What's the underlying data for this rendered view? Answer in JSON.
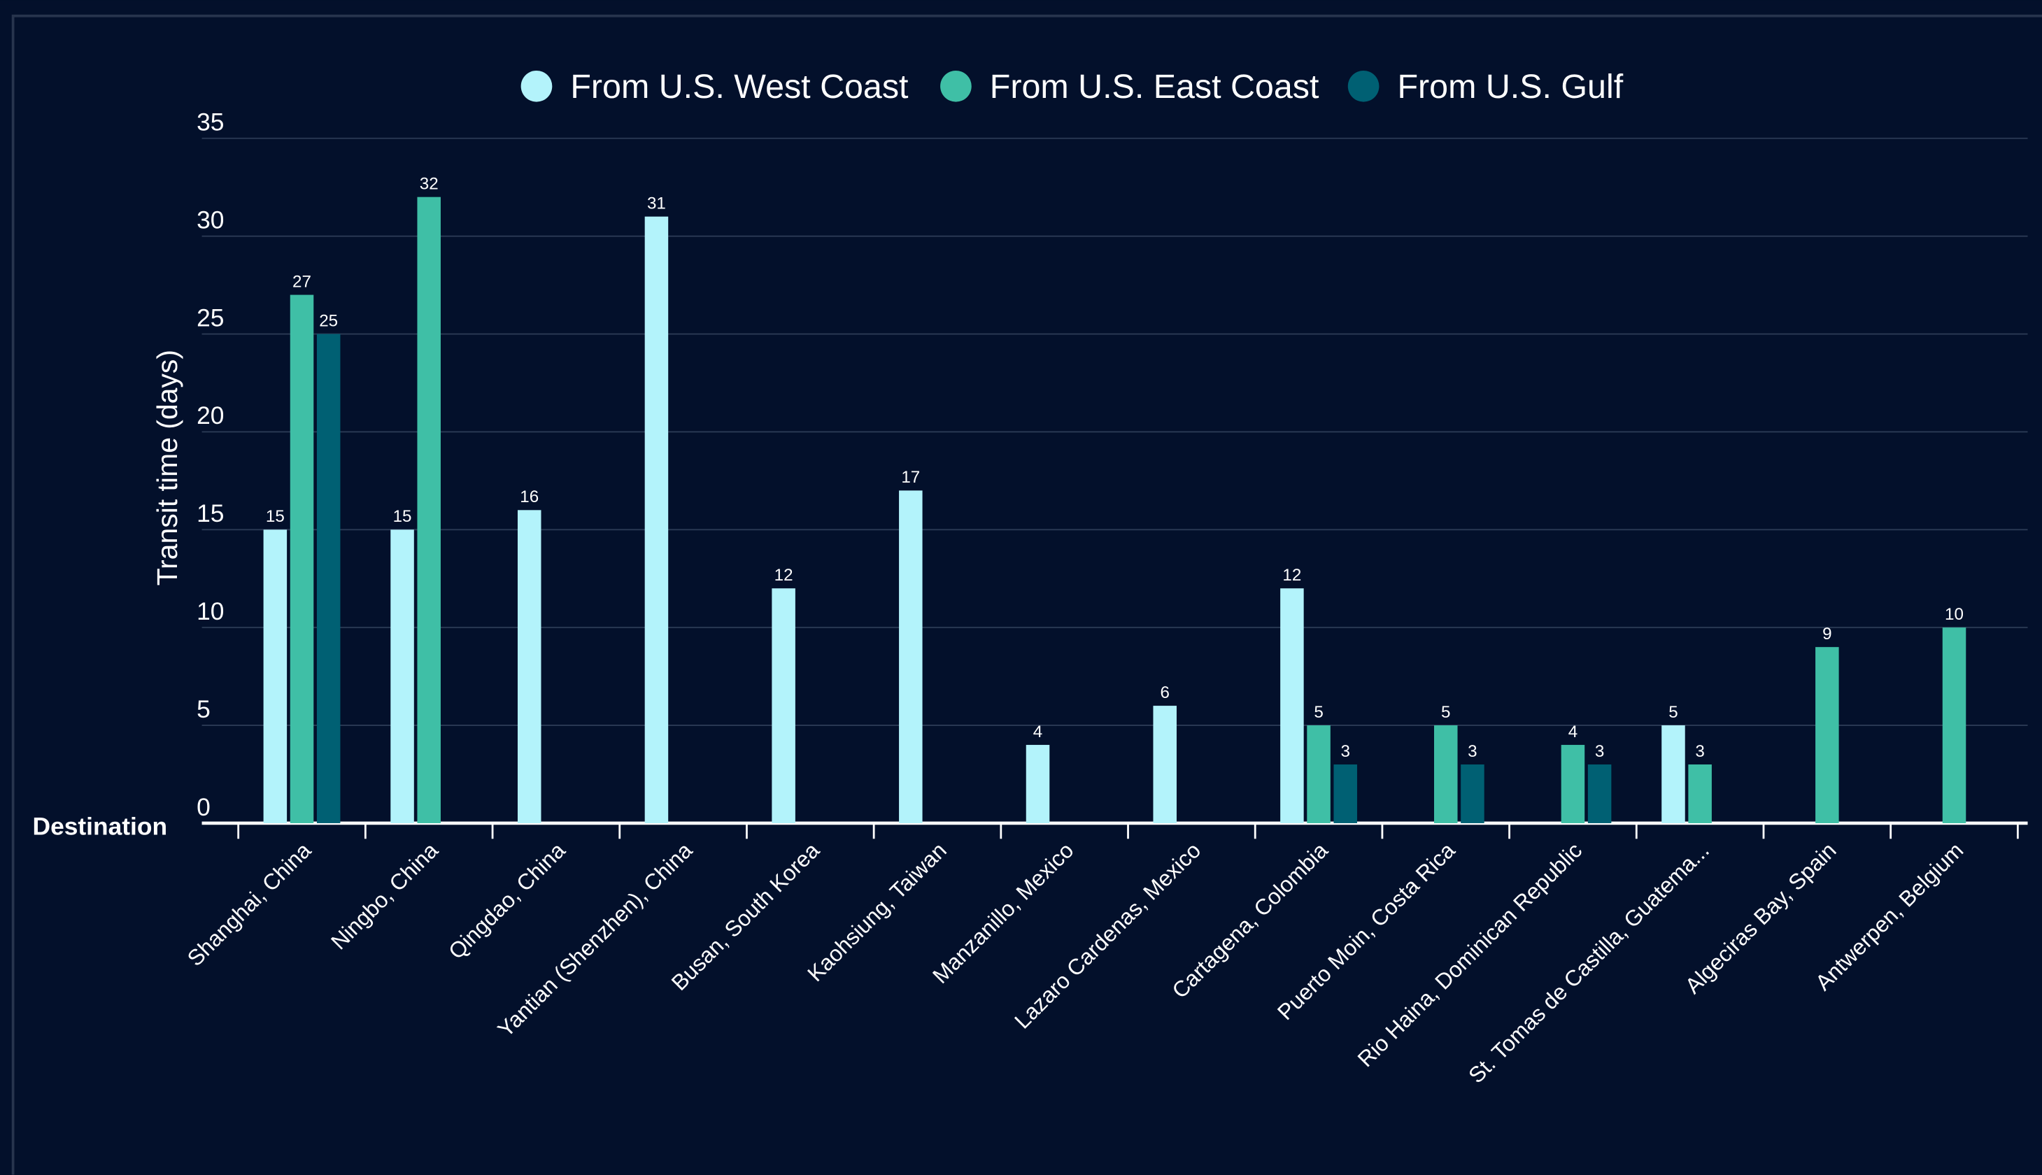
{
  "chart_data": {
    "type": "bar",
    "x_label": "Destination",
    "y_label": "Transit time (days)",
    "categories": [
      "Shanghai, China",
      "Ningbo, China",
      "Qingdao, China",
      "Yantian (Shenzhen), China",
      "Busan, South Korea",
      "Kaohsiung, Taiwan",
      "Manzanillo, Mexico",
      "Lazaro Cardenas, Mexico",
      "Cartagena, Colombia",
      "Puerto Moin, Costa Rica",
      "Rio Haina, Dominican Republic",
      "St. Tomas de Castilla, Guatema...",
      "Algeciras Bay, Spain",
      "Antwerpen, Belgium"
    ],
    "series": [
      {
        "name": "From U.S. West Coast",
        "color": "#b3f3fb",
        "values": [
          15,
          15,
          16,
          31,
          12,
          17,
          4,
          6,
          12,
          null,
          null,
          5,
          null,
          null
        ]
      },
      {
        "name": "From U.S. East Coast",
        "color": "#3fbfa6",
        "values": [
          27,
          32,
          null,
          null,
          null,
          null,
          null,
          null,
          5,
          5,
          4,
          3,
          9,
          10
        ]
      },
      {
        "name": "From U.S. Gulf",
        "color": "#006073",
        "values": [
          25,
          null,
          null,
          null,
          null,
          null,
          null,
          null,
          3,
          3,
          3,
          null,
          null,
          null
        ]
      }
    ],
    "ylim": [
      0,
      35
    ],
    "yticks": [
      0,
      5,
      10,
      15,
      20,
      25,
      30,
      35
    ],
    "grid": true,
    "legend": "top"
  }
}
